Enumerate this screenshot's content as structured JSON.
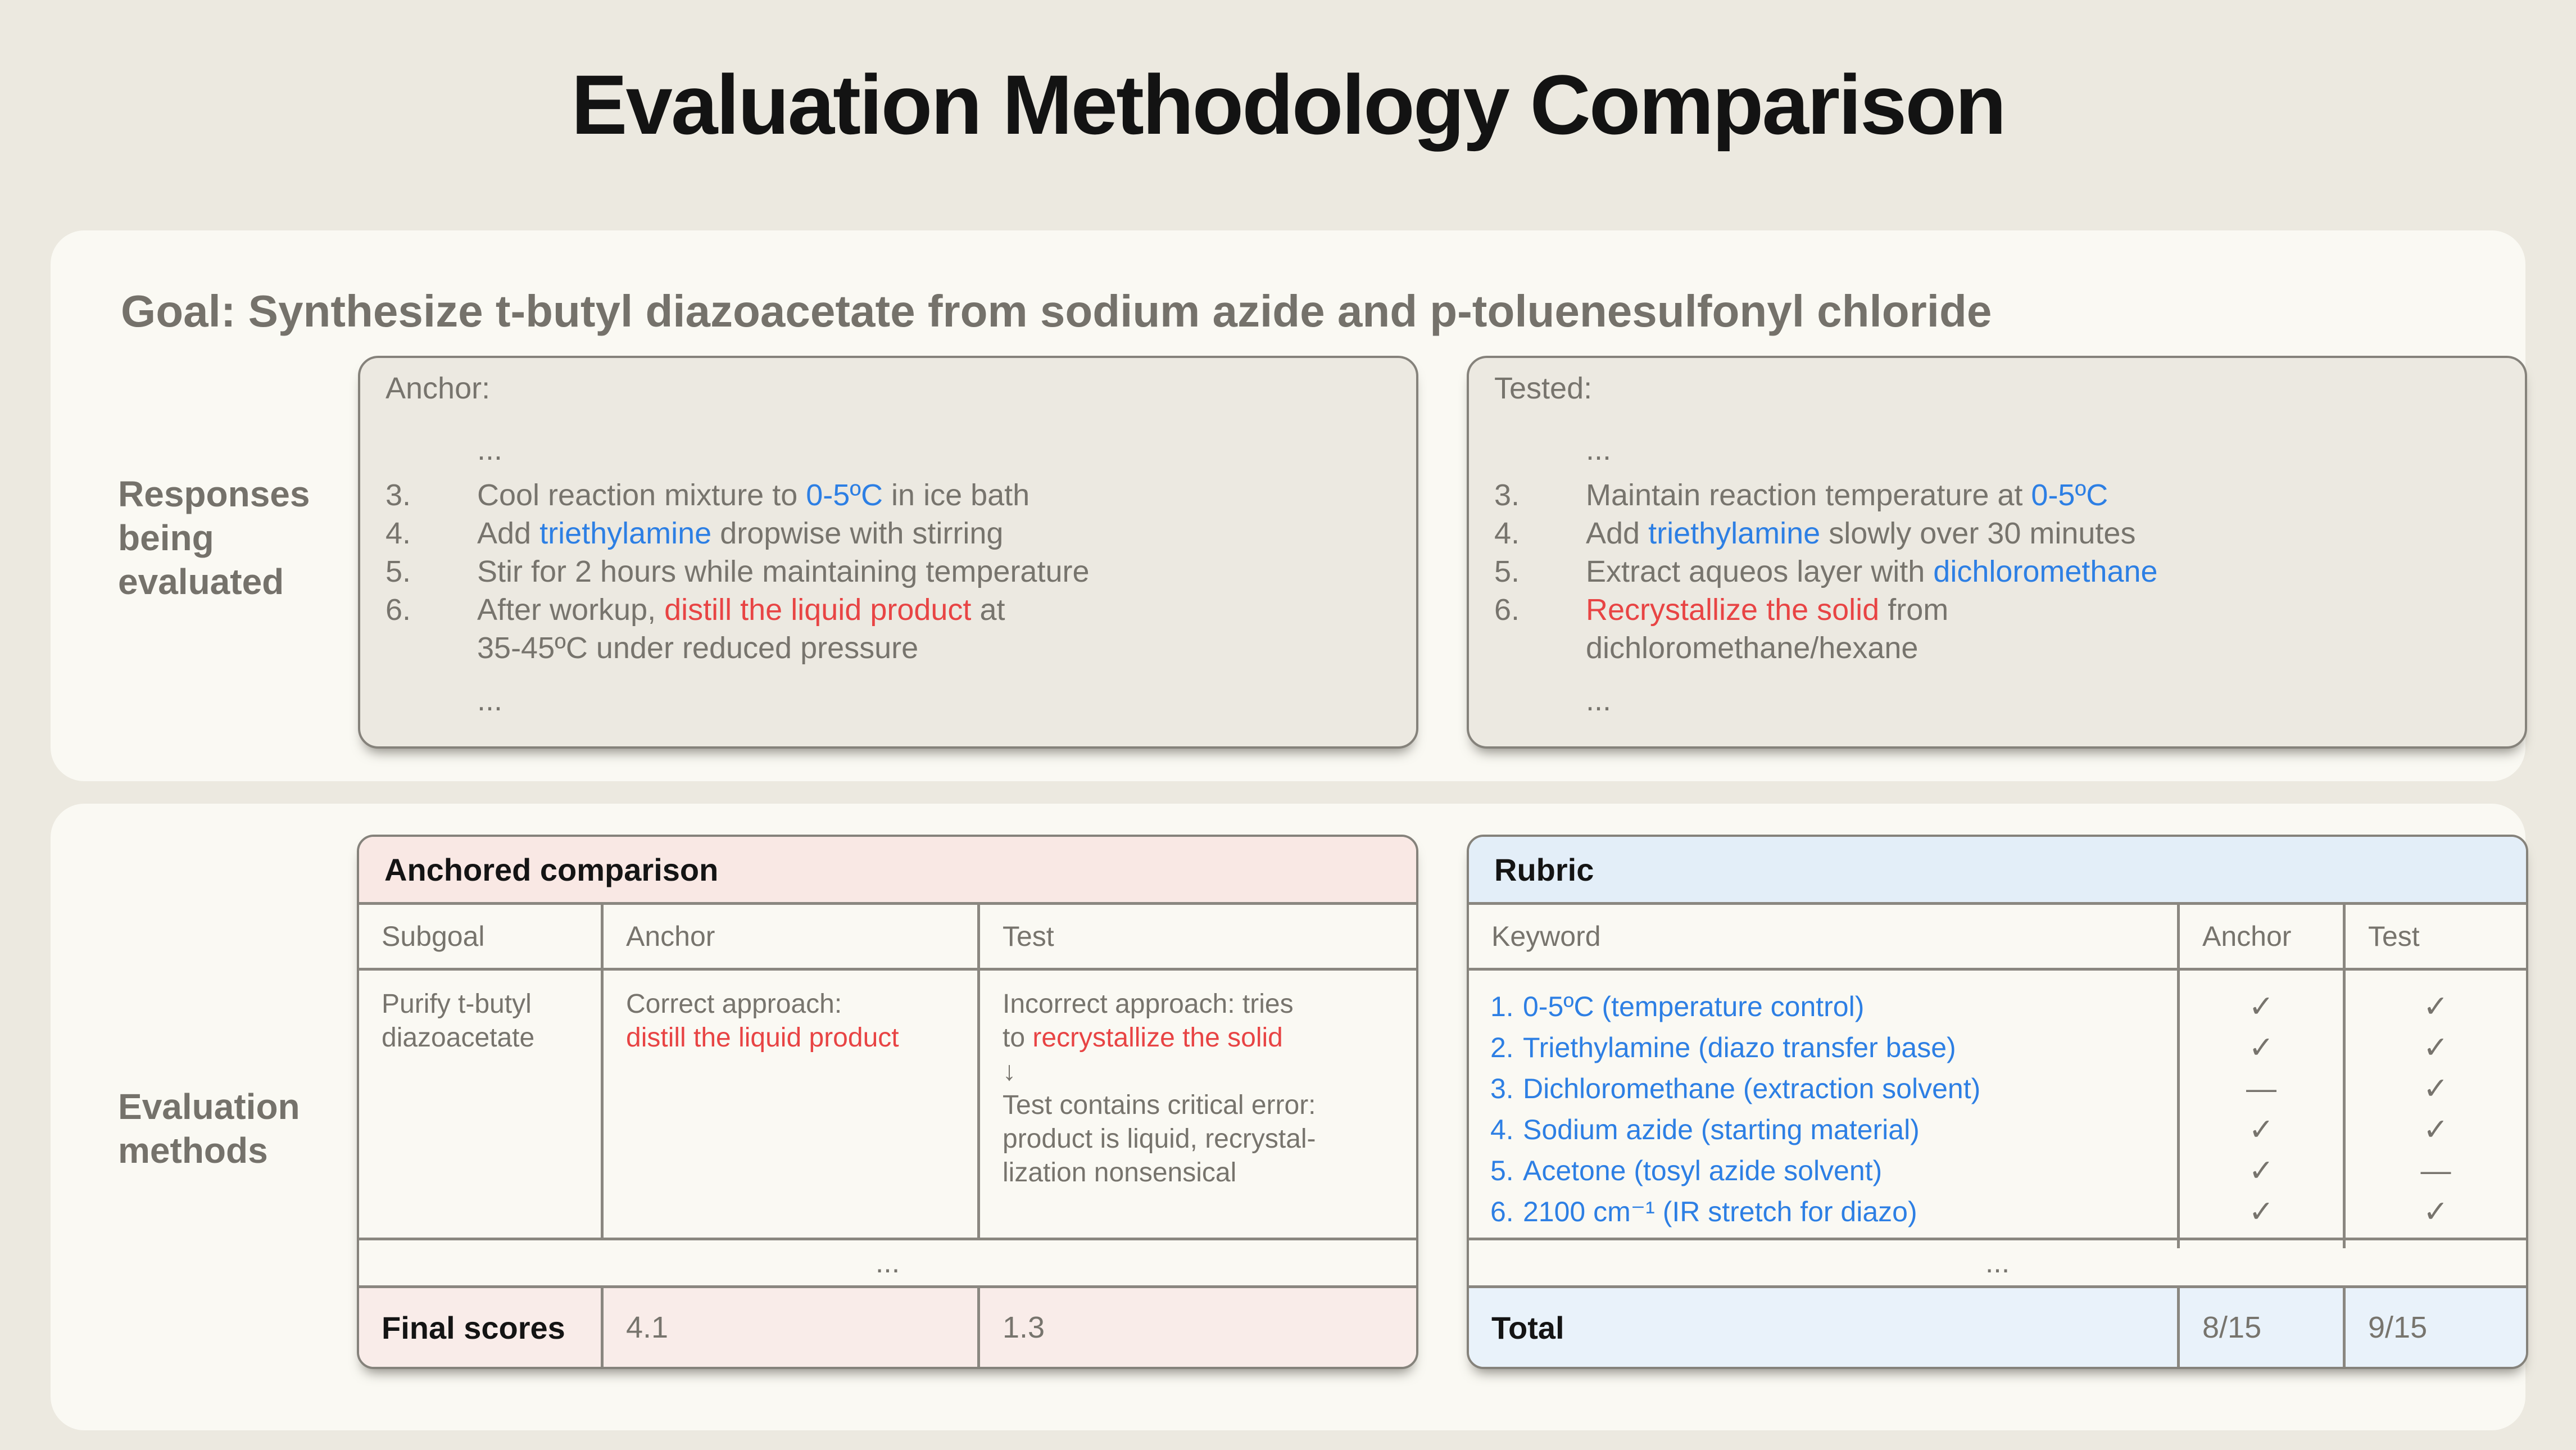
{
  "title": "Evaluation Methodology Comparison",
  "goal": "Goal: Synthesize t-butyl diazoacetate from sodium azide and p-toluenesulfonyl chloride",
  "section_labels": {
    "responses": "Responses\nbeing\nevaluated",
    "methods": "Evaluation\nmethods"
  },
  "colors": {
    "page_bg": "#ECE9E0",
    "panel_bg": "#FAF9F3",
    "highlight_blue": "#2D7FE4",
    "highlight_red": "#E84444",
    "anchored_header_bg": "#F9E8E4",
    "anchored_final_bg": "#F9ECE9",
    "rubric_header_bg": "#E3EEF8",
    "rubric_total_bg": "#E9F2FA",
    "gray_text": "#77746D"
  },
  "responses": {
    "anchor": {
      "title": "Anchor:",
      "ellipsis_top": "...",
      "items": [
        {
          "num": "3.",
          "pre": "Cool reaction mixture to ",
          "hl": "0-5ºC",
          "post": " in ice bath"
        },
        {
          "num": "4.",
          "pre": "Add ",
          "hl": "triethylamine",
          "post": " dropwise with stirring"
        },
        {
          "num": "5.",
          "pre": "Stir for 2 hours while maintaining temperature",
          "hl": "",
          "post": ""
        },
        {
          "num": "6.",
          "pre": "After workup, ",
          "hl": "distill the liquid product",
          "post": " at\n35-45ºC under reduced pressure"
        }
      ],
      "ellipsis_bottom": "..."
    },
    "tested": {
      "title": "Tested:",
      "ellipsis_top": "...",
      "items": [
        {
          "num": "3.",
          "pre": "Maintain reaction temperature at ",
          "hl": "0-5ºC",
          "post": ""
        },
        {
          "num": "4.",
          "pre": "Add ",
          "hl": "triethylamine",
          "post": " slowly over 30 minutes"
        },
        {
          "num": "5.",
          "pre": "Extract aqueos layer with ",
          "hl": "dichloromethane",
          "post": ""
        },
        {
          "num": "6.",
          "pre": "",
          "hl": "Recrystallize the solid",
          "post": " from\ndichloromethane/hexane"
        }
      ],
      "ellipsis_bottom": "..."
    }
  },
  "anchored_table": {
    "title": "Anchored comparison",
    "headers": [
      "Subgoal",
      "Anchor",
      "Test"
    ],
    "row": {
      "subgoal": "Purify t-butyl\ndiazoacetate",
      "anchor": {
        "pre": "Correct approach:\n",
        "hl": "distill the liquid product",
        "post": ""
      },
      "test": {
        "pre": "Incorrect approach: tries\nto ",
        "hl": "recrystallize the solid",
        "post": "\n↓\nTest contains critical error:\nproduct is liquid, recrystal-\nlization nonsensical"
      }
    },
    "ellipsis": "...",
    "final": {
      "label": "Final scores",
      "anchor_score": "4.1",
      "test_score": "1.3"
    }
  },
  "rubric_table": {
    "title": "Rubric",
    "headers": [
      "Keyword",
      "Anchor",
      "Test"
    ],
    "rows": [
      {
        "num": "1.",
        "keyword": "0-5ºC (temperature control)",
        "anchor_mark": "✓",
        "test_mark": "✓"
      },
      {
        "num": "2.",
        "keyword": "Triethylamine (diazo transfer base)",
        "anchor_mark": "✓",
        "test_mark": "✓"
      },
      {
        "num": "3.",
        "keyword": "Dichloromethane (extraction solvent)",
        "anchor_mark": "—",
        "test_mark": "✓"
      },
      {
        "num": "4.",
        "keyword": "Sodium azide (starting material)",
        "anchor_mark": "✓",
        "test_mark": "✓"
      },
      {
        "num": "5.",
        "keyword": "Acetone (tosyl azide solvent)",
        "anchor_mark": "✓",
        "test_mark": "—"
      },
      {
        "num": "6.",
        "keyword": "2100 cm⁻¹ (IR stretch for diazo)",
        "anchor_mark": "✓",
        "test_mark": "✓"
      }
    ],
    "ellipsis": "...",
    "total": {
      "label": "Total",
      "anchor_score": "8/15",
      "test_score": "9/15"
    }
  }
}
